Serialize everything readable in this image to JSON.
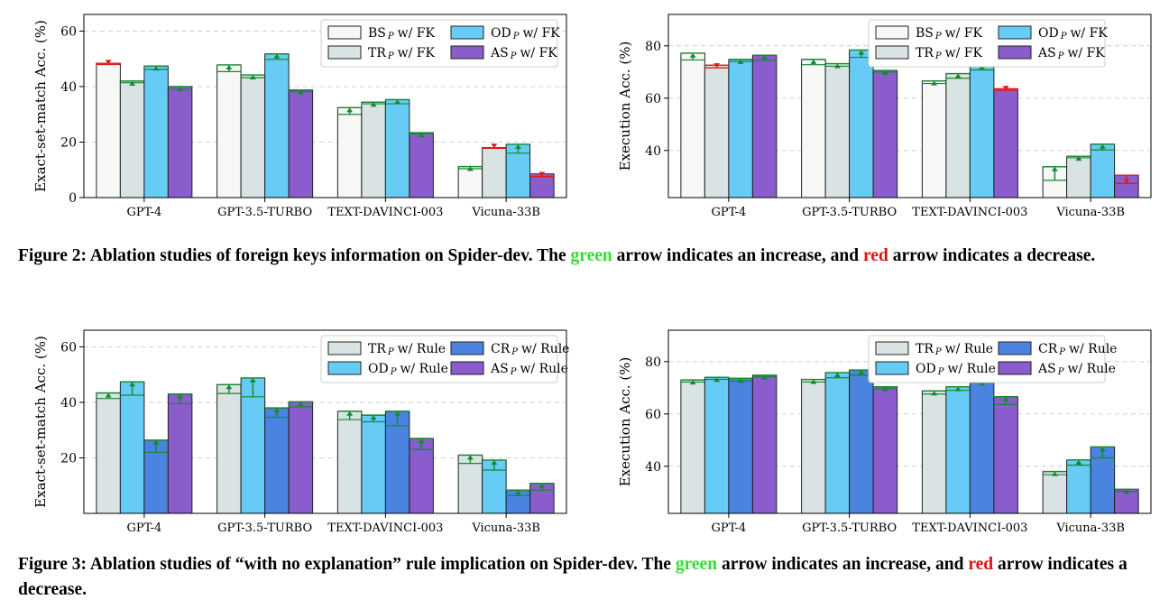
{
  "figure2": {
    "caption": {
      "label": "Figure 2:",
      "before": "Ablation studies of foreign keys information on Spider-dev. The",
      "green_word": "green",
      "middle": "arrow indicates an increase, and",
      "red_word": "red",
      "after": "arrow indicates a decrease."
    }
  },
  "figure3": {
    "caption": {
      "label": "Figure 3:",
      "before": "Ablation studies of “with no explanation” rule implication on Spider-dev. The",
      "green_word": "green",
      "middle": "arrow indicates an increase, and",
      "red_word": "red",
      "after": "arrow indicates a decrease."
    }
  },
  "colors": {
    "increase": "#138a2e",
    "decrease": "#e01a1a"
  },
  "chart_data": [
    {
      "id": "fig2-esm",
      "type": "bar",
      "ylabel": "Exact-set-match Acc. (%)",
      "ylim": [
        0,
        66
      ],
      "yticks": [
        0,
        20,
        40,
        60
      ],
      "grid": true,
      "legend_position": "top-right",
      "categories": [
        "GPT-4",
        "GPT-3.5-TURBO",
        "TEXT-DAVINCI-003",
        "Vicuna-33B"
      ],
      "series": [
        {
          "name": "BS",
          "suffix": "w/ FK",
          "color": "#f5f8f5",
          "base": [
            48.4,
            45.4,
            30.0,
            10.4
          ],
          "with": [
            48.0,
            47.8,
            32.4,
            11.2
          ]
        },
        {
          "name": "TR",
          "suffix": "w/ FK",
          "color": "#d9e3e3",
          "base": [
            41.4,
            43.2,
            33.8,
            18.0
          ],
          "with": [
            42.0,
            44.2,
            34.4,
            17.8
          ]
        },
        {
          "name": "OD",
          "suffix": "w/ FK",
          "color": "#66ccf5",
          "base": [
            46.2,
            49.8,
            33.8,
            16.0
          ],
          "with": [
            47.4,
            51.8,
            35.3,
            19.2
          ]
        },
        {
          "name": "AS",
          "suffix": "w/ FK",
          "color": "#8a5ccc",
          "base": [
            39.0,
            38.2,
            23.0,
            8.6
          ],
          "with": [
            40.0,
            38.8,
            23.4,
            7.6
          ]
        }
      ]
    },
    {
      "id": "fig2-ex",
      "type": "bar",
      "ylabel": "Execution Acc. (%)",
      "ylim": [
        22,
        92
      ],
      "yticks": [
        40,
        60,
        80
      ],
      "grid": true,
      "legend_position": "top-right",
      "categories": [
        "GPT-4",
        "GPT-3.5-TURBO",
        "TEXT-DAVINCI-003",
        "Vicuna-33B"
      ],
      "series": [
        {
          "name": "BS",
          "suffix": "w/ FK",
          "color": "#f5f8f5",
          "base": [
            74.6,
            72.8,
            65.6,
            28.6
          ],
          "with": [
            77.2,
            74.8,
            66.6,
            33.8
          ]
        },
        {
          "name": "TR",
          "suffix": "w/ FK",
          "color": "#d9e3e3",
          "base": [
            72.6,
            72.2,
            67.6,
            37.2
          ],
          "with": [
            71.6,
            73.2,
            69.4,
            37.8
          ]
        },
        {
          "name": "OD",
          "suffix": "w/ FK",
          "color": "#66ccf5",
          "base": [
            74.0,
            75.6,
            70.8,
            40.2
          ],
          "with": [
            74.8,
            78.4,
            72.8,
            42.4
          ]
        },
        {
          "name": "AS",
          "suffix": "w/ FK",
          "color": "#8a5ccc",
          "base": [
            74.4,
            70.0,
            63.6,
            30.6
          ],
          "with": [
            76.4,
            70.6,
            63.0,
            27.4
          ]
        }
      ]
    },
    {
      "id": "fig3-esm",
      "type": "bar",
      "ylabel": "Exact-set-match Acc. (%)",
      "ylim": [
        0,
        66
      ],
      "yticks": [
        20,
        40,
        60
      ],
      "grid": true,
      "legend_position": "top-right",
      "categories": [
        "GPT-4",
        "GPT-3.5-TURBO",
        "TEXT-DAVINCI-003",
        "Vicuna-33B"
      ],
      "series": [
        {
          "name": "TR",
          "suffix": "w/ Rule",
          "color": "#d9e3e3",
          "base": [
            41.4,
            43.2,
            33.8,
            18.0
          ],
          "with": [
            43.4,
            46.4,
            36.8,
            21.0
          ]
        },
        {
          "name": "OD",
          "suffix": "w/ Rule",
          "color": "#66ccf5",
          "base": [
            42.6,
            42.0,
            33.0,
            15.6
          ],
          "with": [
            47.4,
            48.8,
            35.4,
            19.2
          ]
        },
        {
          "name": "CR",
          "suffix": "w/ Rule",
          "color": "#4a84e0",
          "base": [
            22.0,
            34.6,
            31.6,
            6.4
          ],
          "with": [
            26.4,
            38.0,
            36.8,
            8.4
          ]
        },
        {
          "name": "AS",
          "suffix": "w/ Rule",
          "color": "#8a5ccc",
          "base": [
            39.6,
            38.4,
            23.0,
            8.4
          ],
          "with": [
            43.0,
            40.2,
            27.0,
            10.8
          ]
        }
      ]
    },
    {
      "id": "fig3-ex",
      "type": "bar",
      "ylabel": "Execution Acc. (%)",
      "ylim": [
        22,
        92
      ],
      "yticks": [
        40,
        60,
        80
      ],
      "grid": true,
      "legend_position": "top-right",
      "categories": [
        "GPT-4",
        "GPT-3.5-TURBO",
        "TEXT-DAVINCI-003",
        "Vicuna-33B"
      ],
      "series": [
        {
          "name": "TR",
          "suffix": "w/ Rule",
          "color": "#d9e3e3",
          "base": [
            72.2,
            72.2,
            67.6,
            36.8
          ],
          "with": [
            73.0,
            73.2,
            68.8,
            38.0
          ]
        },
        {
          "name": "OD",
          "suffix": "w/ Rule",
          "color": "#66ccf5",
          "base": [
            73.2,
            73.8,
            69.0,
            40.4
          ],
          "with": [
            74.0,
            75.8,
            70.4,
            42.4
          ]
        },
        {
          "name": "CR",
          "suffix": "w/ Rule",
          "color": "#4a84e0",
          "base": [
            72.6,
            74.8,
            71.8,
            43.2
          ],
          "with": [
            73.6,
            76.8,
            72.6,
            47.4
          ]
        },
        {
          "name": "AS",
          "suffix": "w/ Rule",
          "color": "#8a5ccc",
          "base": [
            74.2,
            69.6,
            63.6,
            30.4
          ],
          "with": [
            74.8,
            70.4,
            66.6,
            31.2
          ]
        }
      ]
    }
  ]
}
